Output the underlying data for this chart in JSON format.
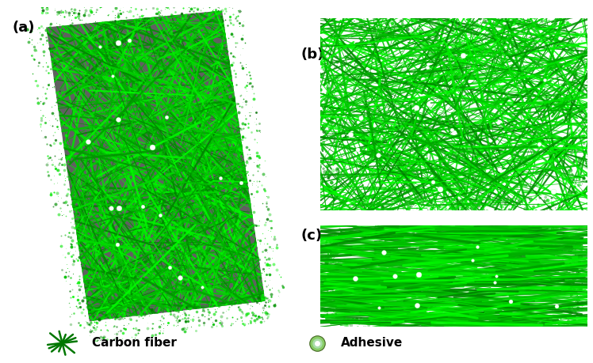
{
  "figure_width": 7.48,
  "figure_height": 4.59,
  "bg_color": "#ffffff",
  "panel_a_label": "(a)",
  "panel_b_label": "(b)",
  "panel_c_label": "(c)",
  "legend_fiber_label": "Carbon fiber",
  "legend_adhesive_label": "Adhesive",
  "green_dark": "#007700",
  "green_bright": "#00ee00",
  "gray_bg": "#606060",
  "gray_dark": "#404040",
  "white": "#ffffff",
  "fiber_alpha": 0.9,
  "seed": 42
}
